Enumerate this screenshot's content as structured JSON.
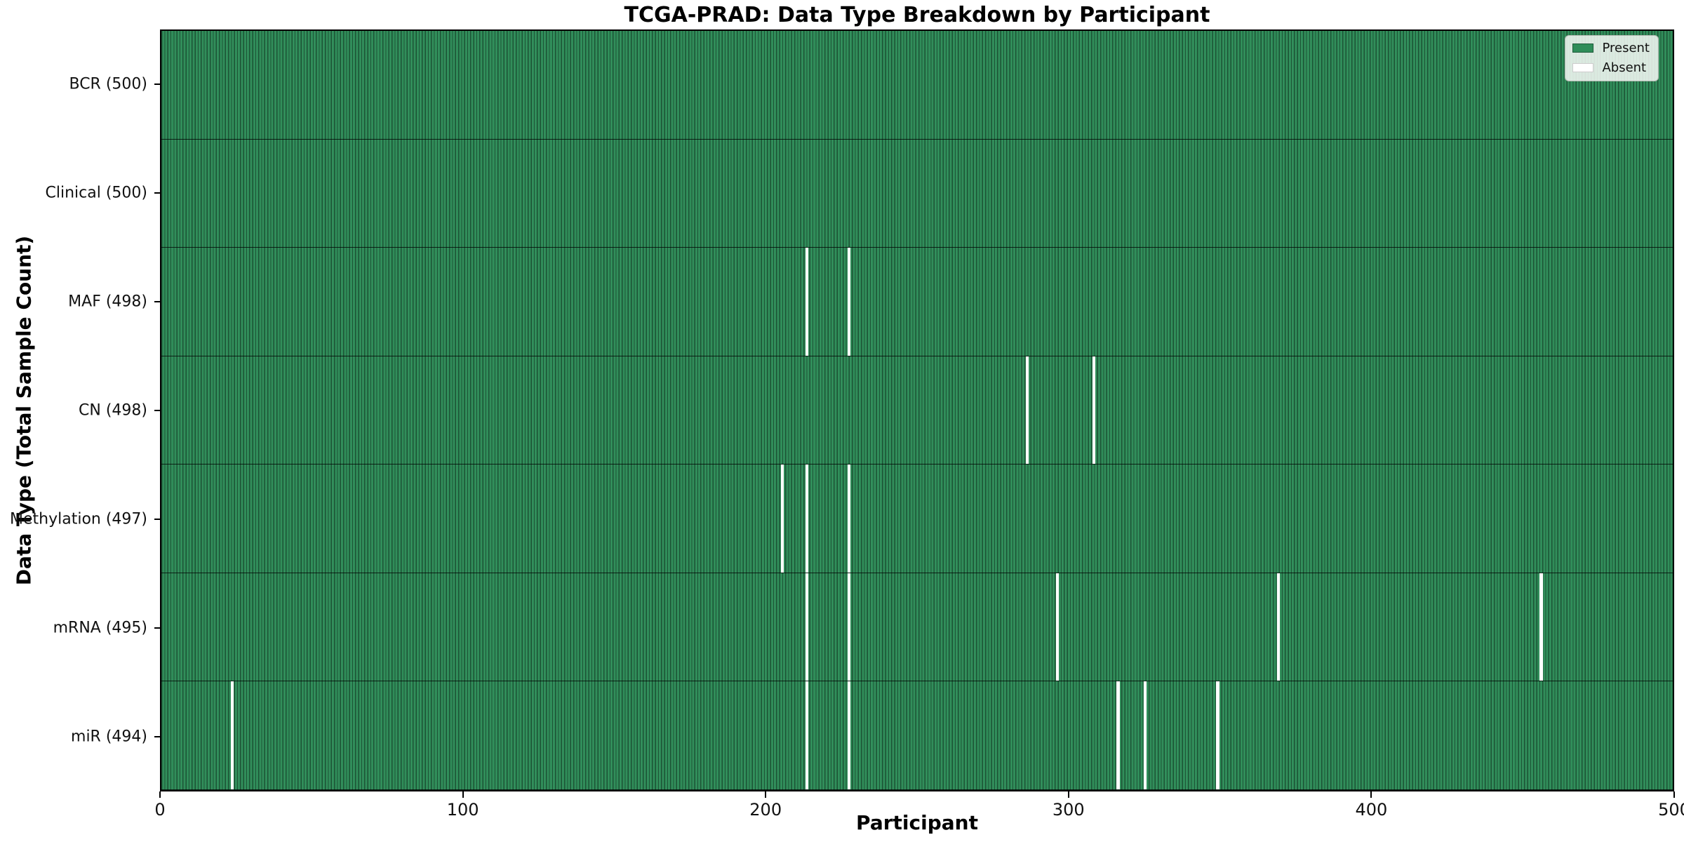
{
  "chart_data": {
    "type": "heatmap",
    "title": "TCGA-PRAD: Data Type Breakdown by Participant",
    "xlabel": "Participant",
    "ylabel": "Data Type (Total Sample Count)",
    "xlim": [
      0,
      500
    ],
    "x_ticks": [
      0,
      100,
      200,
      300,
      400,
      500
    ],
    "n_participants": 500,
    "grid": false,
    "legend_position": "upper right",
    "legend": [
      {
        "label": "Present",
        "color": "#2f8d59"
      },
      {
        "label": "Absent",
        "color": "#ffffff"
      }
    ],
    "colors": {
      "present": "#2f8d59",
      "absent": "#ffffff",
      "bar_edge": "#1e5038"
    },
    "rows": [
      {
        "label": "BCR (500)",
        "total_present": 500,
        "absent_participants": []
      },
      {
        "label": "Clinical (500)",
        "total_present": 500,
        "absent_participants": []
      },
      {
        "label": "MAF (498)",
        "total_present": 498,
        "absent_participants": [
          213,
          227
        ]
      },
      {
        "label": "CN (498)",
        "total_present": 498,
        "absent_participants": [
          286,
          308
        ]
      },
      {
        "label": "Methylation (497)",
        "total_present": 497,
        "absent_participants": [
          205,
          213,
          227
        ]
      },
      {
        "label": "mRNA (495)",
        "total_present": 495,
        "absent_participants": [
          213,
          227,
          296,
          369,
          456
        ]
      },
      {
        "label": "miR (494)",
        "total_present": 494,
        "absent_participants": [
          23,
          213,
          227,
          316,
          325,
          349
        ]
      }
    ]
  }
}
